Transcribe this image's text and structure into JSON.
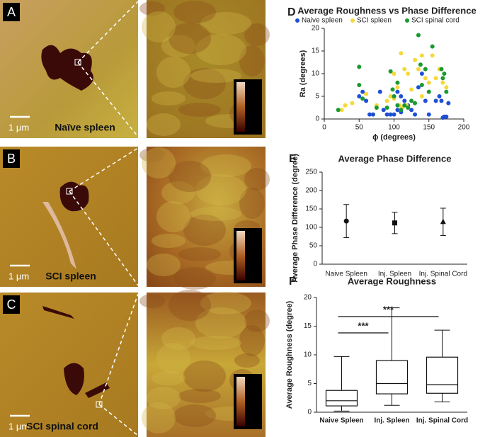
{
  "panels": [
    {
      "label": "A",
      "caption": "Naïve spleen",
      "scale": "1 μm"
    },
    {
      "label": "B",
      "caption": "SCI spleen",
      "scale": "1 μm"
    },
    {
      "label": "C",
      "caption": "SCI spinal cord",
      "scale": "1 μm"
    }
  ],
  "chart_data": [
    {
      "type": "scatter",
      "label": "D",
      "title": "Average Roughness vs Phase Difference",
      "x_label": "ϕ (degrees)",
      "y_label": "Ra (degrees)",
      "xlim": [
        0,
        200
      ],
      "xticks": [
        0,
        50,
        100,
        150,
        200
      ],
      "ylim": [
        0,
        20
      ],
      "yticks": [
        0,
        5,
        10,
        15,
        20
      ],
      "series": [
        {
          "name": "Naive spleen",
          "color": "#1f4fd6",
          "x": [
            50,
            55,
            60,
            65,
            70,
            85,
            90,
            95,
            100,
            100,
            105,
            110,
            115,
            120,
            125,
            130,
            135,
            140,
            145,
            150,
            160,
            165,
            170,
            172,
            175,
            178,
            168,
            110,
            80,
            105
          ],
          "y": [
            5,
            6,
            4,
            1,
            1,
            2,
            1,
            1,
            1,
            5,
            2,
            5,
            4,
            3,
            2,
            1,
            7,
            10,
            4,
            1,
            4,
            5,
            0.3,
            0.5,
            0.5,
            3.5,
            4,
            1.5,
            6,
            6
          ]
        },
        {
          "name": "SCI spleen",
          "color": "#f5d93a",
          "x": [
            25,
            30,
            40,
            60,
            75,
            90,
            95,
            100,
            100,
            105,
            110,
            115,
            120,
            125,
            130,
            135,
            140,
            145,
            150,
            155,
            160,
            165,
            170,
            175,
            118,
            108,
            112,
            140
          ],
          "y": [
            2,
            3,
            3.5,
            5.5,
            3,
            4,
            5,
            4.5,
            10,
            7,
            14.5,
            11,
            10,
            6.5,
            13,
            11,
            14,
            9,
            8,
            14,
            9,
            11,
            8,
            7,
            3,
            3,
            2.5,
            5
          ]
        },
        {
          "name": "SCI spinal cord",
          "color": "#1a9a2e",
          "x": [
            20,
            50,
            50,
            55,
            75,
            95,
            98,
            100,
            105,
            110,
            115,
            120,
            125,
            130,
            135,
            138,
            145,
            150,
            155,
            168,
            170,
            172,
            175,
            90,
            105,
            140
          ],
          "y": [
            2,
            11.5,
            7.5,
            4.5,
            2.5,
            10.5,
            6.5,
            5,
            3,
            2,
            3,
            2.5,
            4,
            3.5,
            18.5,
            12,
            11,
            6,
            16,
            11,
            9,
            10,
            6,
            2.5,
            8,
            7.5
          ]
        }
      ]
    },
    {
      "type": "errorbar",
      "label": "E",
      "title": "Average Phase Difference",
      "y_label": "Average Phase Difference (degree)",
      "categories": [
        "Naive Spleen",
        "Inj. Spleen",
        "Inj. Spinal Cord"
      ],
      "values": [
        117,
        112,
        115
      ],
      "errors": [
        45,
        29,
        37
      ],
      "markers": [
        "circle",
        "square",
        "triangle"
      ],
      "color": "#111111",
      "ylim": [
        0,
        250
      ],
      "yticks": [
        0,
        50,
        100,
        150,
        200,
        250
      ]
    },
    {
      "type": "box",
      "label": "F",
      "title": "Average Roughness",
      "y_label": "Average Roughness (degree)",
      "categories": [
        "Naive Spleen",
        "Inj. Spleen",
        "Inj. Spinal Cord"
      ],
      "boxes": [
        {
          "min": 0.2,
          "q1": 1.1,
          "median": 2,
          "q3": 3.8,
          "max": 9.7
        },
        {
          "min": 1.2,
          "q1": 3.2,
          "median": 5,
          "q3": 9,
          "max": 18.2
        },
        {
          "min": 1.8,
          "q1": 3.3,
          "median": 4.8,
          "q3": 9.6,
          "max": 14.3
        }
      ],
      "color": "#111111",
      "ylim": [
        0,
        20
      ],
      "yticks": [
        0,
        5,
        10,
        15,
        20
      ],
      "annotations": [
        {
          "text": "***",
          "between": [
            "Naive Spleen",
            "Inj. Spleen"
          ]
        },
        {
          "text": "***",
          "between": [
            "Naive Spleen",
            "Inj. Spinal Cord"
          ]
        }
      ]
    }
  ]
}
